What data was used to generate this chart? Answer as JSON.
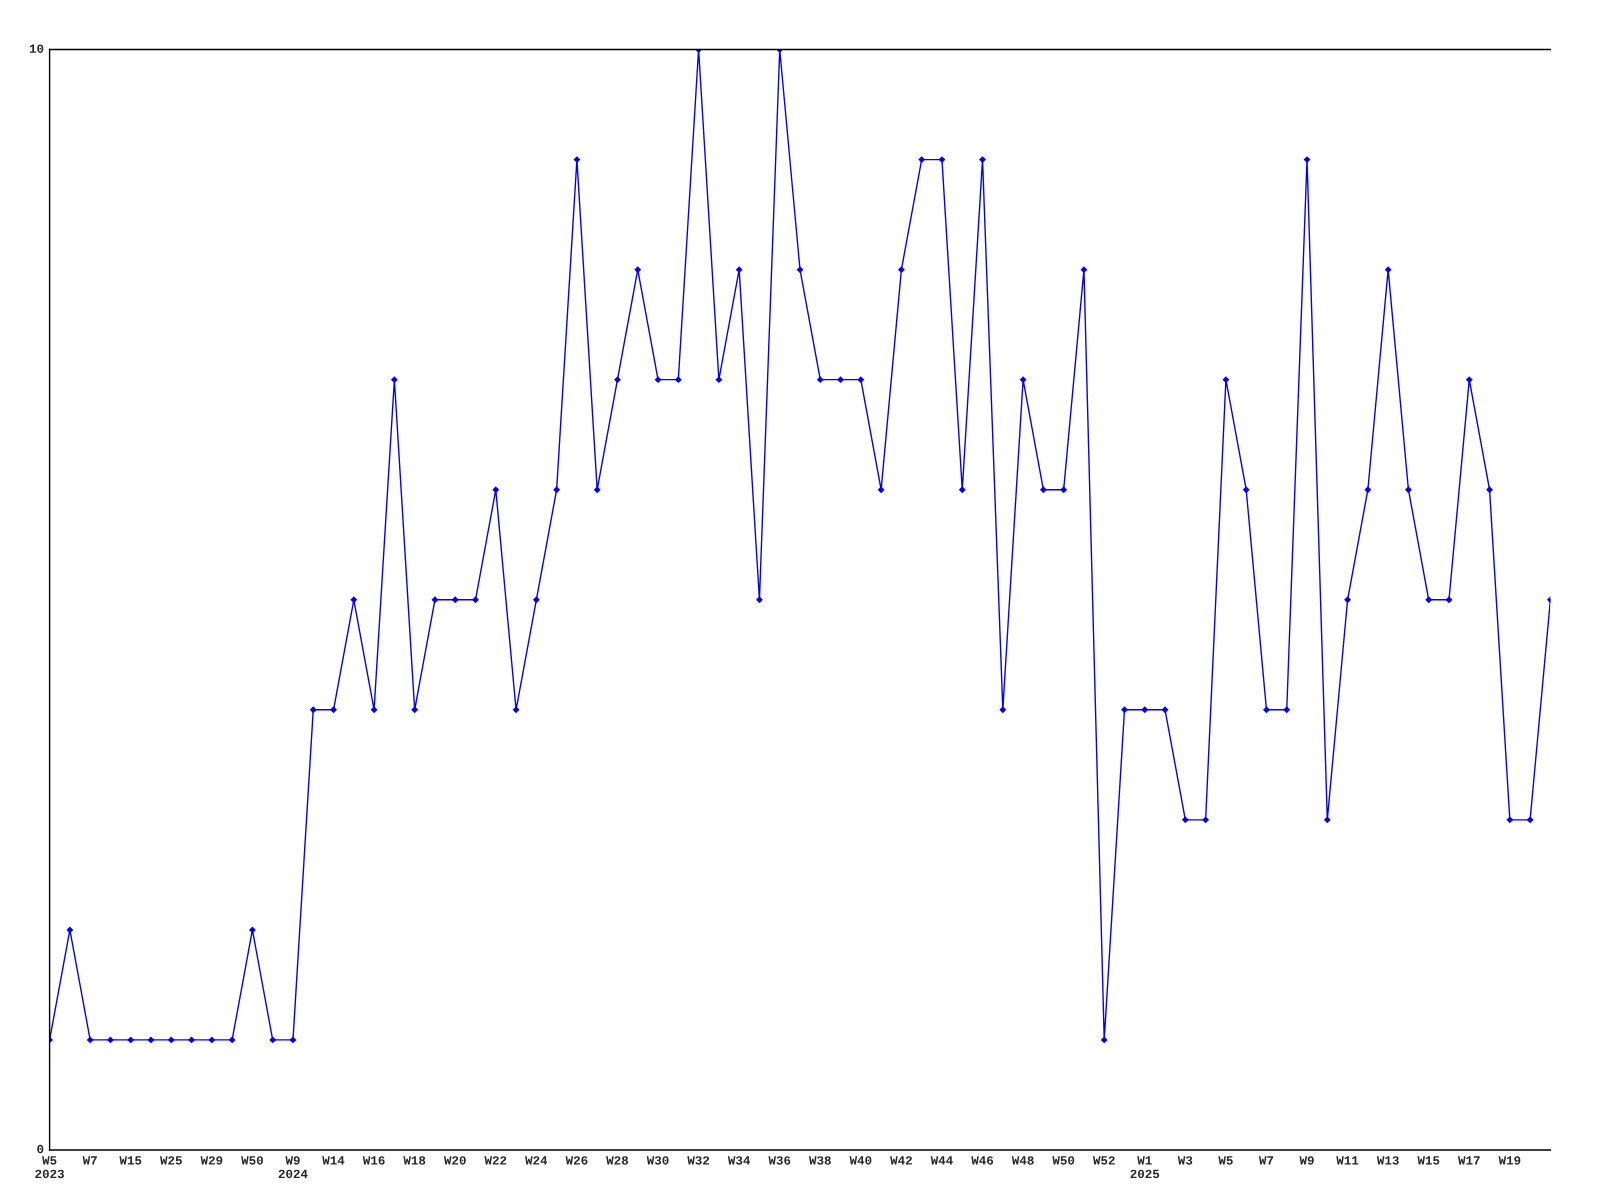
{
  "chart_data": {
    "type": "line",
    "categories": [
      "W5\n2023",
      null,
      "W7",
      null,
      "W15",
      null,
      "W25",
      null,
      "W29",
      null,
      "W50",
      null,
      "W9\n2024",
      null,
      "W14",
      null,
      "W16",
      null,
      "W18",
      null,
      "W20",
      null,
      "W22",
      null,
      "W24",
      null,
      "W26",
      null,
      "W28",
      null,
      "W30",
      null,
      "W32",
      null,
      "W34",
      null,
      "W36",
      null,
      "W38",
      null,
      "W40",
      null,
      "W42",
      null,
      "W44",
      null,
      "W46",
      null,
      "W48",
      null,
      "W50",
      null,
      "W52",
      null,
      "W1\n2025",
      null,
      "W3",
      null,
      "W5",
      null,
      "W7",
      null,
      "W9",
      null,
      "W11",
      null,
      "W13",
      null,
      "W15",
      null,
      "W17",
      null,
      "W19",
      null,
      null
    ],
    "series": [
      {
        "color": "#0000ff",
        "values": [
          1,
          2,
          1,
          1,
          1,
          1,
          1,
          1,
          1,
          1,
          2,
          1,
          1,
          4,
          4,
          5,
          4,
          7,
          4,
          5,
          5,
          5,
          6,
          4,
          5,
          6,
          9,
          6,
          7,
          8,
          7,
          7,
          10,
          7,
          8,
          5,
          10,
          8,
          7,
          7,
          7,
          6,
          8,
          9,
          9,
          6,
          9,
          4,
          7,
          6,
          6,
          8,
          1,
          4,
          4,
          4,
          3,
          3,
          7,
          6,
          4,
          4,
          9,
          3,
          5,
          6,
          8,
          6,
          5,
          5,
          7,
          6,
          3,
          3,
          5
        ]
      }
    ],
    "ylim": [
      0,
      10
    ],
    "yticks": [
      0,
      10
    ],
    "marker": "diamond",
    "line_style": "solid",
    "grid": false,
    "legend": false
  }
}
